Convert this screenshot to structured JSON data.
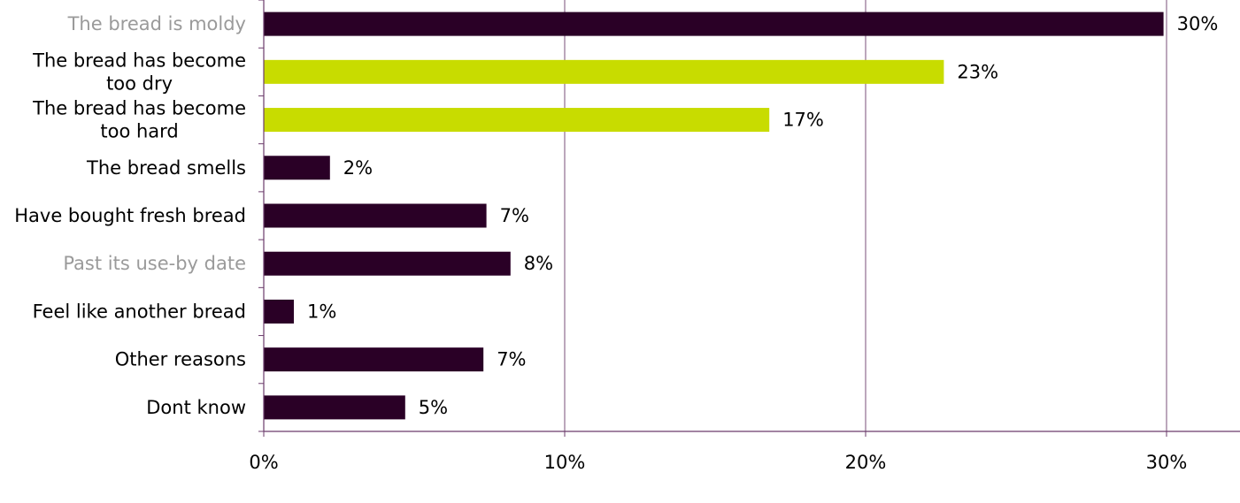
{
  "chart_data": {
    "type": "bar",
    "orientation": "horizontal",
    "categories": [
      [
        "The bread is moldy"
      ],
      [
        "The bread has become",
        "too dry"
      ],
      [
        "The bread has become",
        "too hard"
      ],
      [
        "The bread smells"
      ],
      [
        "Have bought fresh bread"
      ],
      [
        "Past its use-by date"
      ],
      [
        "Feel like another bread"
      ],
      [
        "Other reasons"
      ],
      [
        "Dont know"
      ]
    ],
    "category_label_colors": [
      "#9a9a9a",
      "#000000",
      "#000000",
      "#000000",
      "#000000",
      "#9a9a9a",
      "#000000",
      "#000000",
      "#000000"
    ],
    "values": [
      29.9,
      22.6,
      16.8,
      2.2,
      7.4,
      8.2,
      1.0,
      7.3,
      4.7
    ],
    "data_labels": [
      "30%",
      "23%",
      "17%",
      "2%",
      "7%",
      "8%",
      "1%",
      "7%",
      "5%"
    ],
    "bar_colors": [
      "#2a0026",
      "#c8dc00",
      "#c8dc00",
      "#2a0026",
      "#2a0026",
      "#2a0026",
      "#2a0026",
      "#2a0026",
      "#2a0026"
    ],
    "x_ticks": [
      0,
      10,
      20,
      30
    ],
    "x_tick_labels": [
      "0%",
      "10%",
      "20%",
      "30%"
    ],
    "xlim": [
      0,
      32.4
    ],
    "grid": "vertical",
    "gridline_color": "#7a4f7a",
    "axis_color": "#6b3b6b",
    "title": "",
    "xlabel": "",
    "ylabel": ""
  }
}
